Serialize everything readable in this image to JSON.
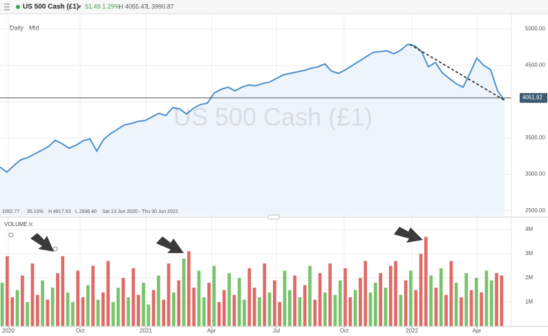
{
  "header": {
    "symbol": "US 500 Cash (£1)",
    "change": "51.49",
    "change_pct": "1.29%",
    "high": "H 4055.47",
    "low": "L 3990.87"
  },
  "toolbar": {
    "interval": "Daily",
    "price_type": "Mid"
  },
  "watermark": "US 500 Cash (£1)",
  "stats": {
    "change": "1052.77",
    "change_pct": "35.10%",
    "high": "H 4817.53",
    "low": "L 2936.40",
    "range": "Sat 13 Jun 2020 - Thu 30 Jun 2022"
  },
  "chart_data": [
    {
      "type": "line",
      "color": "#4a8fcc",
      "fill": "#eef4fb",
      "x": [
        0,
        1,
        2,
        3,
        4,
        5,
        6,
        7,
        8,
        9,
        10,
        11,
        12,
        13,
        14,
        15,
        16,
        17,
        18,
        19,
        20,
        21,
        22,
        23,
        24,
        25,
        26,
        27,
        28,
        29,
        30,
        31,
        32,
        33,
        34,
        35,
        36,
        37,
        38,
        39,
        40,
        41,
        42,
        43,
        44,
        45,
        46,
        47,
        48,
        49,
        50,
        51,
        52,
        53,
        54,
        55,
        56,
        57,
        58,
        59,
        60,
        61,
        62,
        63,
        64,
        65,
        66,
        67,
        68,
        69,
        70,
        71,
        72,
        73
      ],
      "values": [
        3100,
        3030,
        3120,
        3200,
        3230,
        3280,
        3330,
        3380,
        3470,
        3420,
        3360,
        3400,
        3460,
        3490,
        3320,
        3480,
        3560,
        3620,
        3680,
        3700,
        3730,
        3740,
        3790,
        3840,
        3810,
        3920,
        3900,
        3830,
        3910,
        3960,
        3980,
        4120,
        4170,
        4200,
        4150,
        4200,
        4230,
        4220,
        4250,
        4270,
        4320,
        4370,
        4390,
        4410,
        4430,
        4460,
        4480,
        4520,
        4420,
        4390,
        4440,
        4500,
        4560,
        4620,
        4680,
        4690,
        4700,
        4660,
        4710,
        4790,
        4770,
        4690,
        4480,
        4540,
        4400,
        4320,
        4250,
        4200,
        4390,
        4600,
        4500,
        4440,
        4150,
        4020
      ],
      "xlim": [
        0,
        79.3
      ],
      "ylim": [
        2430,
        5210
      ],
      "yticks": [
        {
          "value": 2500,
          "label": "2500.00"
        },
        {
          "value": 3000,
          "label": "3000.00"
        },
        {
          "value": 3500,
          "label": "3500.00"
        },
        {
          "value": 4000,
          "label": "4000.00"
        },
        {
          "value": 4500,
          "label": "4500.00"
        },
        {
          "value": 5000,
          "label": "5000.00"
        }
      ],
      "last_price": {
        "value": 4051.92,
        "label": "4051.92"
      },
      "trendline": {
        "x": [
          59.3,
          73
        ],
        "values": [
          4790,
          4020
        ]
      },
      "grid": true
    },
    {
      "type": "bar",
      "title": "VOLUME",
      "colors": [
        "#79c36a",
        "#e06a66"
      ],
      "values": [
        1.8,
        2.9,
        1.2,
        1.5,
        2.1,
        1.0,
        2.6,
        1.3,
        1.9,
        1.1,
        1.6,
        2.2,
        2.9,
        1.4,
        1.0,
        2.3,
        1.2,
        1.7,
        2.5,
        1.1,
        1.4,
        2.7,
        1.0,
        1.6,
        2.0,
        1.2,
        2.4,
        1.3,
        1.8,
        0.9,
        1.5,
        2.1,
        1.1,
        2.6,
        1.4,
        1.9,
        2.8,
        3.1,
        1.6,
        2.3,
        1.2,
        1.8,
        2.5,
        1.0,
        1.5,
        2.2,
        1.3,
        2.0,
        1.1,
        2.4,
        1.6,
        1.2,
        2.6,
        1.4,
        1.9,
        1.0,
        2.3,
        1.5,
        2.1,
        1.2,
        1.7,
        2.5,
        1.1,
        2.2,
        1.4,
        2.6,
        1.3,
        1.9,
        2.4,
        1.2,
        1.5,
        2.0,
        2.7,
        1.4,
        1.8,
        2.2,
        1.6,
        2.5,
        2.7,
        1.3,
        1.9,
        2.3,
        1.5,
        3.0,
        3.7,
        2.1,
        1.6,
        2.4,
        1.3,
        2.7,
        1.8,
        1.2,
        2.2,
        1.5,
        2.0,
        1.4,
        2.3,
        1.9,
        2.2,
        2.1
      ],
      "color_index": [
        0,
        1,
        1,
        0,
        1,
        0,
        1,
        1,
        0,
        1,
        0,
        1,
        1,
        0,
        0,
        1,
        1,
        0,
        1,
        0,
        1,
        1,
        0,
        0,
        1,
        0,
        1,
        1,
        0,
        0,
        1,
        0,
        1,
        1,
        0,
        1,
        0,
        1,
        1,
        0,
        0,
        1,
        0,
        1,
        1,
        0,
        1,
        0,
        0,
        1,
        1,
        0,
        1,
        0,
        1,
        1,
        0,
        0,
        1,
        0,
        1,
        0,
        1,
        1,
        0,
        1,
        0,
        0,
        1,
        1,
        0,
        1,
        1,
        0,
        0,
        1,
        0,
        1,
        1,
        0,
        1,
        0,
        1,
        1,
        1,
        0,
        1,
        0,
        1,
        1,
        0,
        1,
        0,
        1,
        0,
        1,
        0,
        0,
        1,
        1
      ],
      "ylim": [
        0,
        4.4
      ],
      "yticks": [
        {
          "value": 1,
          "label": "1M"
        },
        {
          "value": 2,
          "label": "2M"
        },
        {
          "value": 3,
          "label": "3M"
        },
        {
          "value": 4,
          "label": "4M"
        }
      ],
      "xticks": [
        {
          "value": 1.2,
          "label": "2020"
        },
        {
          "value": 11.6,
          "label": "Oct"
        },
        {
          "value": 21.1,
          "label": "2021"
        },
        {
          "value": 30.6,
          "label": "Apr"
        },
        {
          "value": 40,
          "label": "Jul"
        },
        {
          "value": 49.8,
          "label": "Oct"
        },
        {
          "value": 59.6,
          "label": "2022"
        },
        {
          "value": 69,
          "label": "Apr"
        }
      ]
    }
  ]
}
